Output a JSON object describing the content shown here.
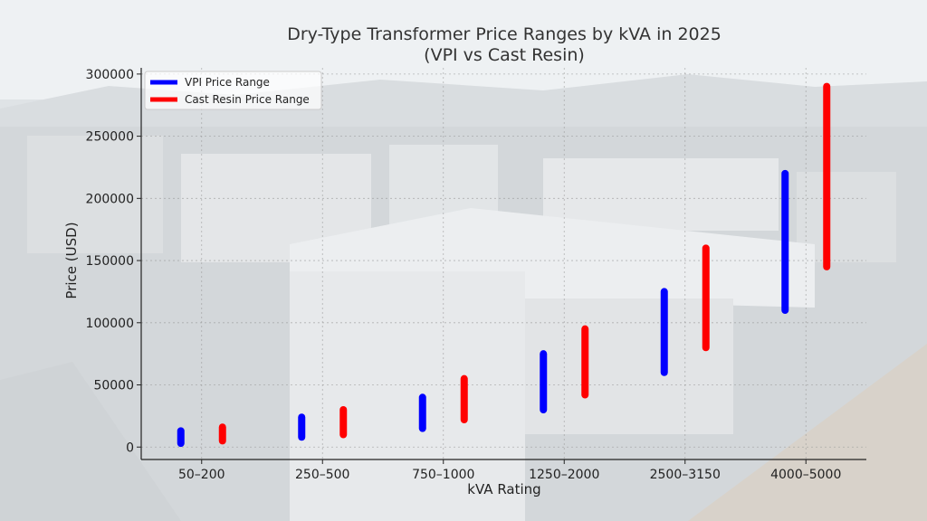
{
  "chart_data": {
    "type": "range-bar",
    "title_line1": "Dry-Type Transformer Price Ranges by kVA in 2025",
    "title_line2": "(VPI vs Cast Resin)",
    "xlabel": "kVA Rating",
    "ylabel": "Price (USD)",
    "categories": [
      "50–200",
      "250–500",
      "750–1000",
      "1250–2000",
      "2500–3150",
      "4000–5000"
    ],
    "ylim": [
      -10000,
      305000
    ],
    "yticks": [
      0,
      50000,
      100000,
      150000,
      200000,
      250000,
      300000
    ],
    "ytick_labels": [
      "0",
      "50000",
      "100000",
      "150000",
      "200000",
      "250000",
      "300000"
    ],
    "grid": true,
    "legend_position": "top-left",
    "series": [
      {
        "name": "VPI Price Range",
        "color": "#0000ff",
        "low": [
          3000,
          8000,
          15000,
          30000,
          60000,
          110000
        ],
        "high": [
          13000,
          24000,
          40000,
          75000,
          125000,
          220000
        ]
      },
      {
        "name": "Cast Resin Price Range",
        "color": "#ff0000",
        "low": [
          5000,
          10000,
          22000,
          42000,
          80000,
          145000
        ],
        "high": [
          16000,
          30000,
          55000,
          95000,
          160000,
          290000
        ]
      }
    ]
  }
}
